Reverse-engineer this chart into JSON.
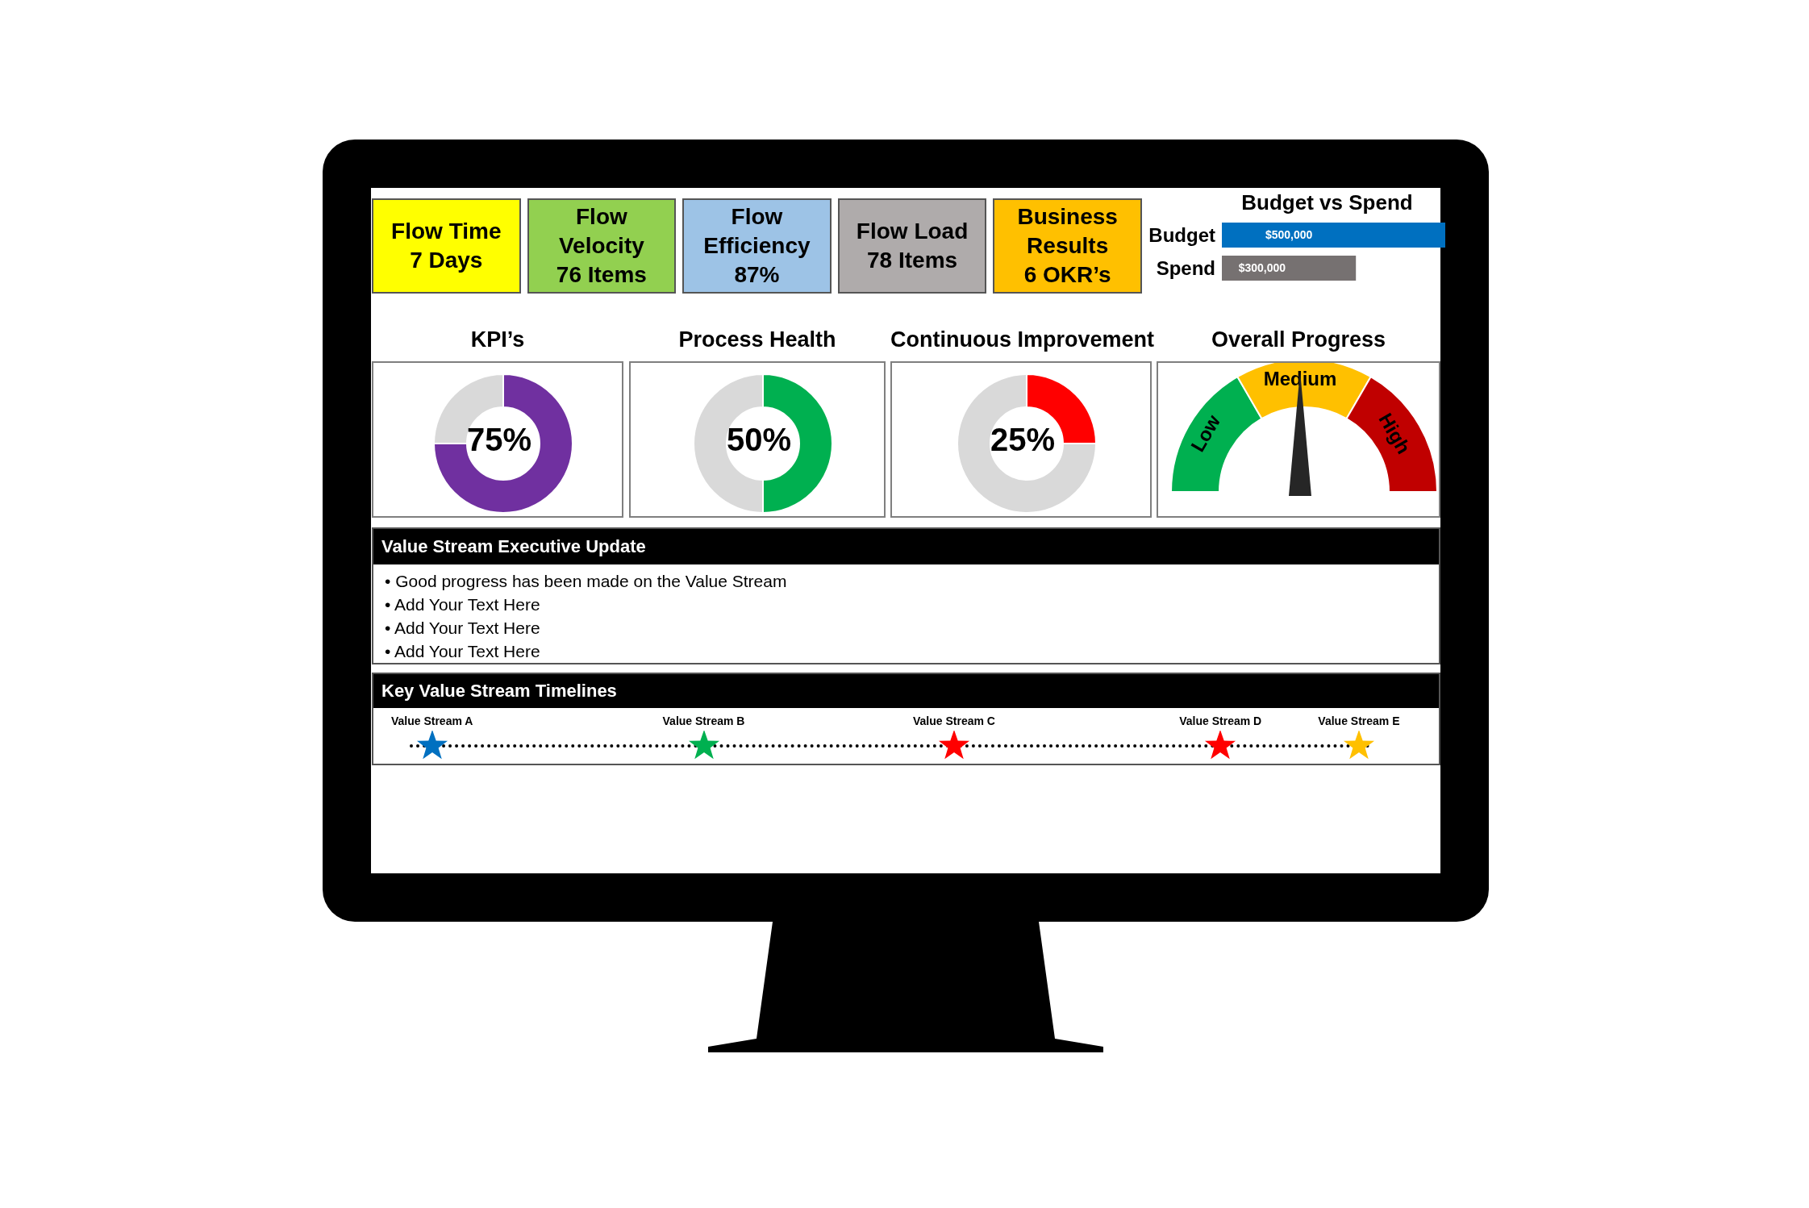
{
  "chart_data": [
    {
      "type": "other",
      "annotations": [
        "Flow Time\n7 Days",
        "Flow\nVelocity\n76 Items",
        "Flow\nEfficiency\n87%",
        "Flow Load\n78 Items",
        "Business\nResults\n6 OKR’s"
      ],
      "colors": [
        "#ffff00",
        "#92d050",
        "#9dc3e6",
        "#afabab",
        "#ffc000"
      ]
    },
    {
      "type": "bar",
      "orientation": "horizontal",
      "title": "Budget vs Spend",
      "categories": [
        "Budget",
        "Spend"
      ],
      "values": [
        500000,
        300000
      ],
      "colors": [
        "#0070c0",
        "#767171"
      ],
      "value_labels": [
        "$500,000",
        "$300,000"
      ],
      "xlim": [
        0,
        500000
      ],
      "tick_labels": "y"
    },
    {
      "type": "donut",
      "title": "KPI’s",
      "categories": [
        null,
        null
      ],
      "values": [
        75,
        25
      ],
      "colors": [
        "#7030a0",
        "#d9d9d9"
      ],
      "annotations": [
        "75%"
      ]
    },
    {
      "type": "donut",
      "title": "Process Health",
      "categories": [
        null,
        null
      ],
      "values": [
        50,
        50
      ],
      "colors": [
        "#00b050",
        "#d9d9d9"
      ],
      "annotations": [
        "50%"
      ]
    },
    {
      "type": "donut",
      "title": "Continuous Improvement",
      "categories": [
        null,
        null
      ],
      "values": [
        25,
        75
      ],
      "colors": [
        "#ff0000",
        "#d9d9d9"
      ],
      "annotations": [
        "25%"
      ]
    },
    {
      "type": "donut",
      "title": "Overall Progress",
      "categories": [
        "Low",
        "Medium",
        "High"
      ],
      "values": [
        33.3,
        33.4,
        33.3
      ],
      "colors": [
        "#00b050",
        "#ffc000",
        "#c00000"
      ],
      "needle": "Medium"
    },
    {
      "type": "other",
      "title": "Value Stream Executive Update",
      "annotations": [
        "• Good progress has been made on the Value Stream",
        "• Add Your Text Here",
        "• Add Your Text Here",
        "• Add Your Text Here"
      ]
    },
    {
      "type": "other",
      "title": "Key Value Stream Timelines",
      "annotations": [
        "Value Stream A",
        "Value Stream B",
        "Value Stream C",
        "Value Stream D",
        "Value Stream E"
      ],
      "colors": [
        "#0070c0",
        "#00b050",
        "#ff0000",
        "#ff0000",
        "#ffc000"
      ]
    }
  ]
}
